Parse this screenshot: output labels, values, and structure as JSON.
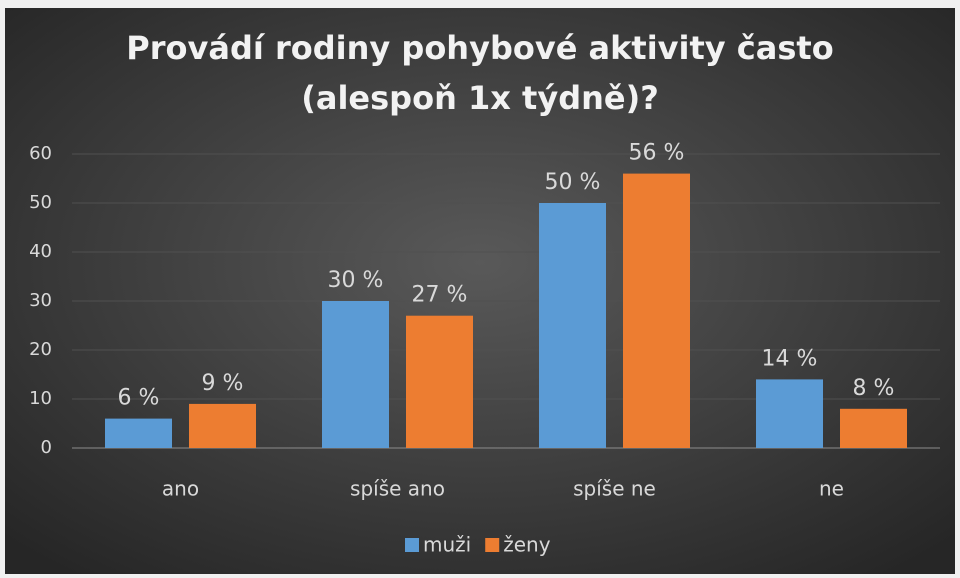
{
  "chart_data": {
    "type": "bar",
    "title": [
      "Provádí rodiny pohybové aktivity často",
      "(alespoň 1x týdně)?"
    ],
    "categories": [
      "ano",
      "spíše ano",
      "spíše ne",
      "ne"
    ],
    "series": [
      {
        "name": "muži",
        "color": "#5b9bd5",
        "values": [
          6,
          30,
          50,
          14
        ],
        "value_labels": [
          "6 %",
          "30 %",
          "50 %",
          "14 %"
        ]
      },
      {
        "name": "ženy",
        "color": "#ed7d31",
        "values": [
          9,
          27,
          56,
          8
        ],
        "value_labels": [
          "9 %",
          "27 %",
          "56 %",
          "8 %"
        ]
      }
    ],
    "ylim": [
      0,
      60
    ],
    "yticks": [
      0,
      10,
      20,
      30,
      40,
      50,
      60
    ],
    "grid": true,
    "legend": "bottom"
  }
}
